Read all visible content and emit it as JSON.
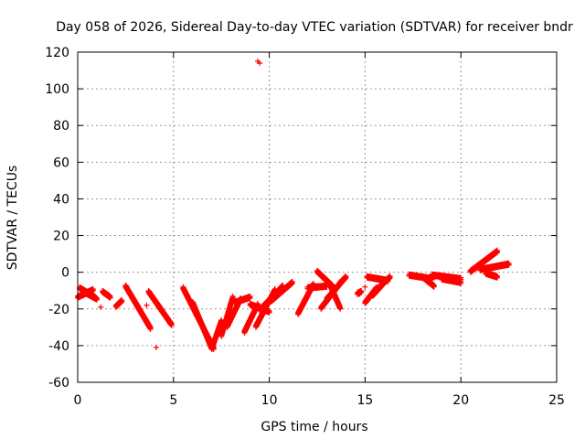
{
  "chart_data": {
    "type": "scatter",
    "title": "Day 058 of 2026, Sidereal Day-to-day VTEC variation (SDTVAR) for receiver bndr",
    "xlabel": "GPS time / hours",
    "ylabel": "SDTVAR / TECUs",
    "xlim": [
      0,
      25
    ],
    "ylim": [
      -60,
      120
    ],
    "xticks": [
      0,
      5,
      10,
      15,
      20,
      25
    ],
    "yticks": [
      -60,
      -40,
      -20,
      0,
      20,
      40,
      60,
      80,
      100,
      120
    ],
    "grid": true,
    "marker": "+",
    "color": "#ff0000",
    "segments": [
      {
        "x0": 0.0,
        "x1": 0.8,
        "y0": -14,
        "y1": -10
      },
      {
        "x0": 0.1,
        "x1": 0.9,
        "y0": -9,
        "y1": -14
      },
      {
        "x0": 0.3,
        "x1": 1.0,
        "y0": -11,
        "y1": -15
      },
      {
        "x0": 1.3,
        "x1": 1.7,
        "y0": -11,
        "y1": -14
      },
      {
        "x0": 2.0,
        "x1": 2.3,
        "y0": -19,
        "y1": -16
      },
      {
        "x0": 2.5,
        "x1": 3.8,
        "y0": -8,
        "y1": -31
      },
      {
        "x0": 3.7,
        "x1": 4.9,
        "y0": -11,
        "y1": -29
      },
      {
        "x0": 5.5,
        "x1": 7.1,
        "y0": -9,
        "y1": -42
      },
      {
        "x0": 6.0,
        "x1": 7.0,
        "y0": -17,
        "y1": -42
      },
      {
        "x0": 7.0,
        "x1": 7.5,
        "y0": -42,
        "y1": -27
      },
      {
        "x0": 7.5,
        "x1": 8.1,
        "y0": -35,
        "y1": -14
      },
      {
        "x0": 7.8,
        "x1": 8.5,
        "y0": -30,
        "y1": -15
      },
      {
        "x0": 8.2,
        "x1": 9.0,
        "y0": -17,
        "y1": -14
      },
      {
        "x0": 8.7,
        "x1": 9.4,
        "y0": -33,
        "y1": -18
      },
      {
        "x0": 9.0,
        "x1": 10.0,
        "y0": -18,
        "y1": -22
      },
      {
        "x0": 9.3,
        "x1": 10.3,
        "y0": -30,
        "y1": -10
      },
      {
        "x0": 9.5,
        "x1": 10.7,
        "y0": -21,
        "y1": -8
      },
      {
        "x0": 10.1,
        "x1": 11.2,
        "y0": -16,
        "y1": -6
      },
      {
        "x0": 11.5,
        "x1": 12.3,
        "y0": -23,
        "y1": -7
      },
      {
        "x0": 12.0,
        "x1": 13.0,
        "y0": -9,
        "y1": -8
      },
      {
        "x0": 12.5,
        "x1": 13.3,
        "y0": 0,
        "y1": -8
      },
      {
        "x0": 12.7,
        "x1": 13.8,
        "y0": -20,
        "y1": -5
      },
      {
        "x0": 13.0,
        "x1": 14.0,
        "y0": -15,
        "y1": -3
      },
      {
        "x0": 13.2,
        "x1": 13.7,
        "y0": -8,
        "y1": -20
      },
      {
        "x0": 14.6,
        "x1": 14.8,
        "y0": -12,
        "y1": -11
      },
      {
        "x0": 15.0,
        "x1": 15.6,
        "y0": -17,
        "y1": -9
      },
      {
        "x0": 15.1,
        "x1": 16.2,
        "y0": -3,
        "y1": -5
      },
      {
        "x0": 15.7,
        "x1": 16.3,
        "y0": -9,
        "y1": -3
      },
      {
        "x0": 15.4,
        "x1": 16.0,
        "y0": -13,
        "y1": -6
      },
      {
        "x0": 17.3,
        "x1": 18.5,
        "y0": -2,
        "y1": -4
      },
      {
        "x0": 18.0,
        "x1": 18.6,
        "y0": -3,
        "y1": -8
      },
      {
        "x0": 18.5,
        "x1": 20.0,
        "y0": -2,
        "y1": -4
      },
      {
        "x0": 19.0,
        "x1": 20.0,
        "y0": -4,
        "y1": -6
      },
      {
        "x0": 20.5,
        "x1": 21.9,
        "y0": 0,
        "y1": 11
      },
      {
        "x0": 21.0,
        "x1": 22.5,
        "y0": 1,
        "y1": 4
      },
      {
        "x0": 21.3,
        "x1": 21.9,
        "y0": -1,
        "y1": -3
      }
    ],
    "points": [
      {
        "x": 9.5,
        "y": 114
      },
      {
        "x": 9.4,
        "y": 115
      },
      {
        "x": 4.1,
        "y": -41
      },
      {
        "x": 1.2,
        "y": -19
      },
      {
        "x": 3.6,
        "y": -18
      },
      {
        "x": 15.0,
        "y": -8
      },
      {
        "x": 14.7,
        "y": -12
      },
      {
        "x": 22.5,
        "y": 4
      }
    ]
  }
}
